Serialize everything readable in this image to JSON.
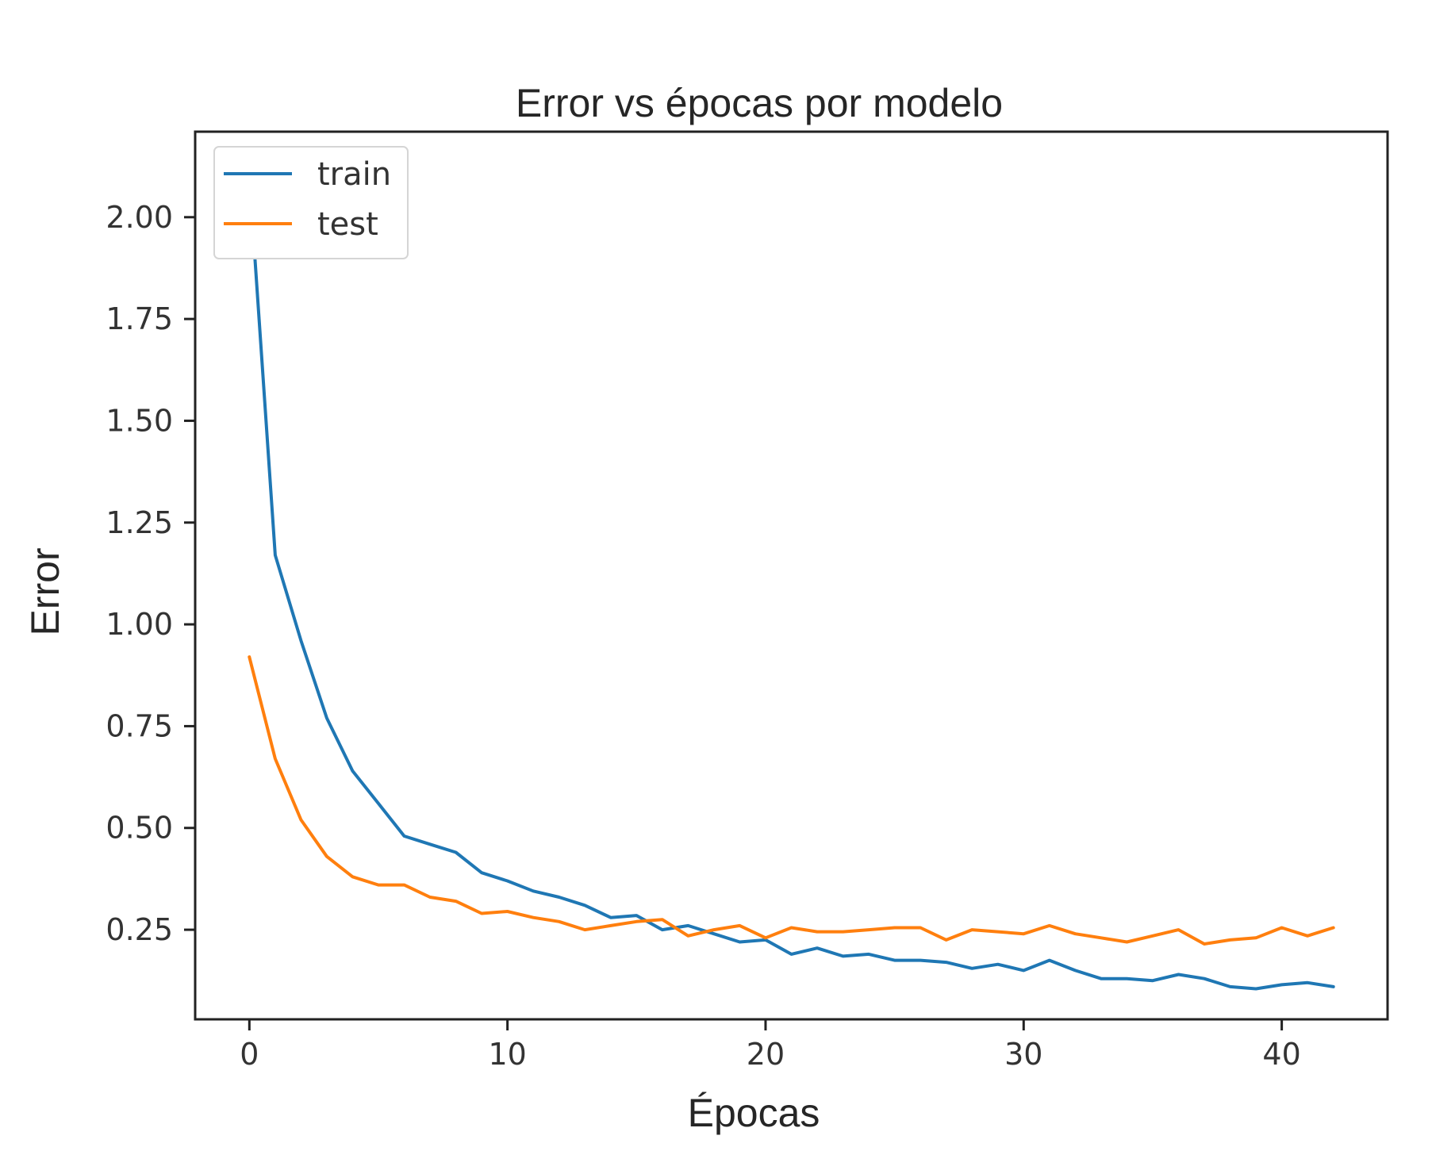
{
  "chart_data": {
    "type": "line",
    "title": "Error vs épocas por modelo",
    "xlabel": "Épocas",
    "ylabel": "Error",
    "xlim": [
      -2.1,
      44.1
    ],
    "ylim": [
      0.03,
      2.21
    ],
    "xticks": [
      0,
      10,
      20,
      30,
      40
    ],
    "xtick_labels": [
      "0",
      "10",
      "20",
      "30",
      "40"
    ],
    "yticks": [
      0.25,
      0.5,
      0.75,
      1.0,
      1.25,
      1.5,
      1.75,
      2.0
    ],
    "ytick_labels": [
      "0.25",
      "0.50",
      "0.75",
      "1.00",
      "1.25",
      "1.50",
      "1.75",
      "2.00"
    ],
    "grid": false,
    "legend": {
      "position": "top-left",
      "entries": [
        "train",
        "test"
      ]
    },
    "series": [
      {
        "name": "train",
        "color": "#1f77b4",
        "x": [
          0,
          1,
          2,
          3,
          4,
          5,
          6,
          7,
          8,
          9,
          10,
          11,
          12,
          13,
          14,
          15,
          16,
          17,
          18,
          19,
          20,
          21,
          22,
          23,
          24,
          25,
          26,
          27,
          28,
          29,
          30,
          31,
          32,
          33,
          34,
          35,
          36,
          37,
          38,
          39,
          40,
          41,
          42
        ],
        "y": [
          2.1,
          1.17,
          0.96,
          0.77,
          0.64,
          0.56,
          0.48,
          0.46,
          0.44,
          0.39,
          0.37,
          0.345,
          0.33,
          0.31,
          0.28,
          0.285,
          0.25,
          0.26,
          0.24,
          0.22,
          0.225,
          0.19,
          0.205,
          0.185,
          0.19,
          0.175,
          0.175,
          0.17,
          0.155,
          0.165,
          0.15,
          0.175,
          0.15,
          0.13,
          0.13,
          0.125,
          0.14,
          0.13,
          0.11,
          0.105,
          0.115,
          0.12,
          0.11
        ]
      },
      {
        "name": "test",
        "color": "#ff7f0e",
        "x": [
          0,
          1,
          2,
          3,
          4,
          5,
          6,
          7,
          8,
          9,
          10,
          11,
          12,
          13,
          14,
          15,
          16,
          17,
          18,
          19,
          20,
          21,
          22,
          23,
          24,
          25,
          26,
          27,
          28,
          29,
          30,
          31,
          32,
          33,
          34,
          35,
          36,
          37,
          38,
          39,
          40,
          41,
          42
        ],
        "y": [
          0.92,
          0.67,
          0.52,
          0.43,
          0.38,
          0.36,
          0.36,
          0.33,
          0.32,
          0.29,
          0.295,
          0.28,
          0.27,
          0.25,
          0.26,
          0.27,
          0.275,
          0.235,
          0.25,
          0.26,
          0.23,
          0.255,
          0.245,
          0.245,
          0.25,
          0.255,
          0.255,
          0.225,
          0.25,
          0.245,
          0.24,
          0.26,
          0.24,
          0.23,
          0.22,
          0.235,
          0.25,
          0.215,
          0.225,
          0.23,
          0.255,
          0.235,
          0.255
        ]
      }
    ]
  }
}
